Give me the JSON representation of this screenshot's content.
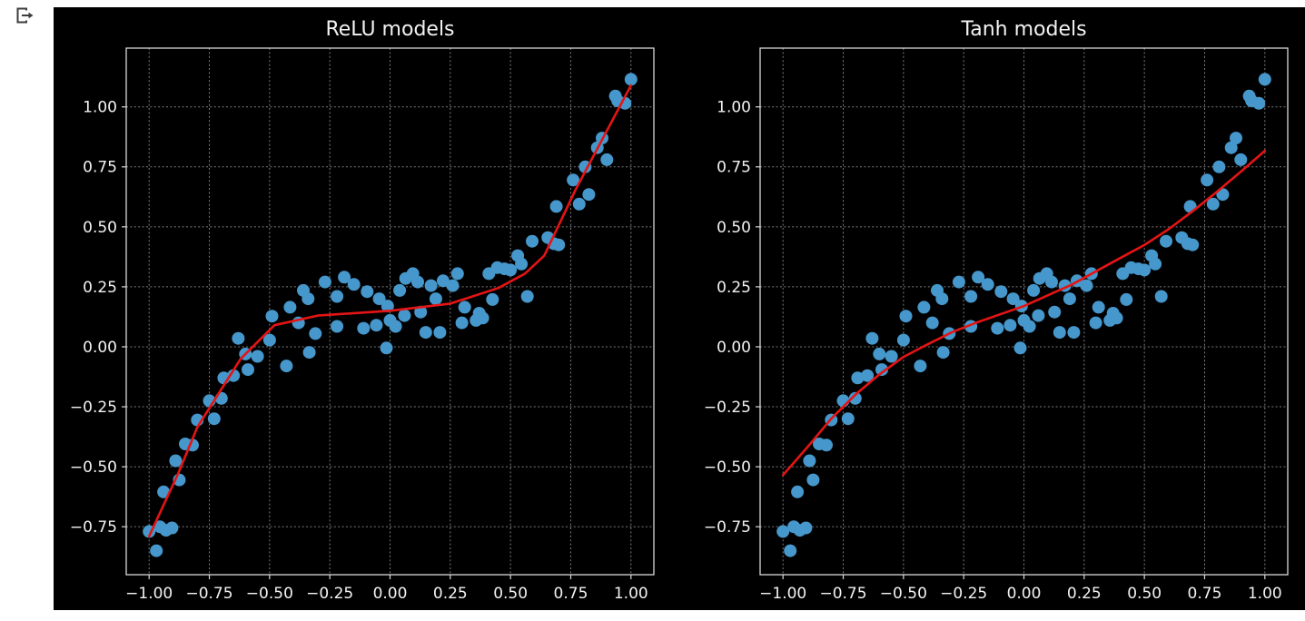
{
  "page": {
    "background": "#ffffff"
  },
  "icons": {
    "output_indicator": "cell-output-icon"
  },
  "figure": {
    "background": "#000000",
    "text_color": "#f2f2f2",
    "grid_color": "#9c9c9c",
    "spine_color": "#d9d9d9",
    "scatter_color": "#4697cb",
    "curve_color": "#e51414"
  },
  "chart_data": [
    {
      "type": "scatter",
      "title": "ReLU models",
      "xlabel": "",
      "ylabel": "",
      "grid": true,
      "legend": null,
      "xlim": [
        -1.095,
        1.095
      ],
      "ylim": [
        -0.95,
        1.245
      ],
      "x_ticks": {
        "values": [
          -1.0,
          -0.75,
          -0.5,
          -0.25,
          0.0,
          0.25,
          0.5,
          0.75,
          1.0
        ],
        "labels": [
          "−1.00",
          "−0.75",
          "−0.50",
          "−0.25",
          "0.00",
          "0.25",
          "0.50",
          "0.75",
          "1.00"
        ]
      },
      "y_ticks": {
        "values": [
          1.0,
          0.75,
          0.5,
          0.25,
          0.0,
          -0.25,
          -0.5,
          -0.75
        ],
        "labels": [
          "1.00",
          "0.75",
          "0.50",
          "0.25",
          "0.00",
          "−0.25",
          "−0.50",
          "−0.75"
        ]
      },
      "scatter": [
        [
          -1.0,
          -0.77
        ],
        [
          -0.97,
          -0.85
        ],
        [
          -0.955,
          -0.75
        ],
        [
          -0.93,
          -0.765
        ],
        [
          -0.905,
          -0.755
        ],
        [
          -0.94,
          -0.605
        ],
        [
          -0.89,
          -0.475
        ],
        [
          -0.875,
          -0.555
        ],
        [
          -0.85,
          -0.405
        ],
        [
          -0.82,
          -0.41
        ],
        [
          -0.8,
          -0.305
        ],
        [
          -0.75,
          -0.225
        ],
        [
          -0.73,
          -0.3
        ],
        [
          -0.7,
          -0.215
        ],
        [
          -0.69,
          -0.13
        ],
        [
          -0.65,
          -0.12
        ],
        [
          -0.63,
          0.035
        ],
        [
          -0.6,
          -0.03
        ],
        [
          -0.59,
          -0.095
        ],
        [
          -0.55,
          -0.04
        ],
        [
          -0.5,
          0.028
        ],
        [
          -0.49,
          0.128
        ],
        [
          -0.43,
          -0.08
        ],
        [
          -0.415,
          0.165
        ],
        [
          -0.38,
          0.1
        ],
        [
          -0.36,
          0.235
        ],
        [
          -0.34,
          0.2
        ],
        [
          -0.335,
          -0.023
        ],
        [
          -0.31,
          0.055
        ],
        [
          -0.27,
          0.27
        ],
        [
          -0.22,
          0.085
        ],
        [
          -0.22,
          0.21
        ],
        [
          -0.19,
          0.29
        ],
        [
          -0.15,
          0.26
        ],
        [
          -0.11,
          0.077
        ],
        [
          -0.095,
          0.23
        ],
        [
          -0.057,
          0.09
        ],
        [
          -0.045,
          0.2
        ],
        [
          -0.015,
          -0.005
        ],
        [
          -0.01,
          0.17
        ],
        [
          0.0,
          0.11
        ],
        [
          0.023,
          0.085
        ],
        [
          0.04,
          0.235
        ],
        [
          0.06,
          0.13
        ],
        [
          0.065,
          0.285
        ],
        [
          0.095,
          0.305
        ],
        [
          0.115,
          0.27
        ],
        [
          0.127,
          0.145
        ],
        [
          0.148,
          0.06
        ],
        [
          0.17,
          0.255
        ],
        [
          0.19,
          0.2
        ],
        [
          0.207,
          0.06
        ],
        [
          0.22,
          0.275
        ],
        [
          0.26,
          0.255
        ],
        [
          0.28,
          0.305
        ],
        [
          0.298,
          0.1
        ],
        [
          0.31,
          0.165
        ],
        [
          0.357,
          0.11
        ],
        [
          0.37,
          0.14
        ],
        [
          0.385,
          0.12
        ],
        [
          0.41,
          0.305
        ],
        [
          0.425,
          0.197
        ],
        [
          0.445,
          0.33
        ],
        [
          0.475,
          0.325
        ],
        [
          0.5,
          0.32
        ],
        [
          0.53,
          0.38
        ],
        [
          0.545,
          0.345
        ],
        [
          0.57,
          0.21
        ],
        [
          0.59,
          0.44
        ],
        [
          0.655,
          0.455
        ],
        [
          0.68,
          0.43
        ],
        [
          0.69,
          0.585
        ],
        [
          0.7,
          0.425
        ],
        [
          0.76,
          0.695
        ],
        [
          0.785,
          0.595
        ],
        [
          0.81,
          0.75
        ],
        [
          0.825,
          0.635
        ],
        [
          0.86,
          0.83
        ],
        [
          0.88,
          0.87
        ],
        [
          0.9,
          0.78
        ],
        [
          0.935,
          1.045
        ],
        [
          0.945,
          1.025
        ],
        [
          0.975,
          1.015
        ],
        [
          1.0,
          1.115
        ]
      ],
      "curve": [
        [
          -1.0,
          -0.79
        ],
        [
          -0.88,
          -0.53
        ],
        [
          -0.8,
          -0.335
        ],
        [
          -0.62,
          -0.05
        ],
        [
          -0.48,
          0.09
        ],
        [
          -0.3,
          0.13
        ],
        [
          0.0,
          0.15
        ],
        [
          0.25,
          0.18
        ],
        [
          0.45,
          0.245
        ],
        [
          0.56,
          0.305
        ],
        [
          0.64,
          0.38
        ],
        [
          0.77,
          0.655
        ],
        [
          1.0,
          1.09
        ]
      ]
    },
    {
      "type": "scatter",
      "title": "Tanh models",
      "xlabel": "",
      "ylabel": "",
      "grid": true,
      "legend": null,
      "xlim": [
        -1.095,
        1.095
      ],
      "ylim": [
        -0.95,
        1.245
      ],
      "x_ticks": {
        "values": [
          -1.0,
          -0.75,
          -0.5,
          -0.25,
          0.0,
          0.25,
          0.5,
          0.75,
          1.0
        ],
        "labels": [
          "−1.00",
          "−0.75",
          "−0.50",
          "−0.25",
          "0.00",
          "0.25",
          "0.50",
          "0.75",
          "1.00"
        ]
      },
      "y_ticks": {
        "values": [
          1.0,
          0.75,
          0.5,
          0.25,
          0.0,
          -0.25,
          -0.5,
          -0.75
        ],
        "labels": [
          "1.00",
          "0.75",
          "0.50",
          "0.25",
          "0.00",
          "−0.25",
          "−0.50",
          "−0.75"
        ]
      },
      "scatter": [
        [
          -1.0,
          -0.77
        ],
        [
          -0.97,
          -0.85
        ],
        [
          -0.955,
          -0.75
        ],
        [
          -0.93,
          -0.765
        ],
        [
          -0.905,
          -0.755
        ],
        [
          -0.94,
          -0.605
        ],
        [
          -0.89,
          -0.475
        ],
        [
          -0.875,
          -0.555
        ],
        [
          -0.85,
          -0.405
        ],
        [
          -0.82,
          -0.41
        ],
        [
          -0.8,
          -0.305
        ],
        [
          -0.75,
          -0.225
        ],
        [
          -0.73,
          -0.3
        ],
        [
          -0.7,
          -0.215
        ],
        [
          -0.69,
          -0.13
        ],
        [
          -0.65,
          -0.12
        ],
        [
          -0.63,
          0.035
        ],
        [
          -0.6,
          -0.03
        ],
        [
          -0.59,
          -0.095
        ],
        [
          -0.55,
          -0.04
        ],
        [
          -0.5,
          0.028
        ],
        [
          -0.49,
          0.128
        ],
        [
          -0.43,
          -0.08
        ],
        [
          -0.415,
          0.165
        ],
        [
          -0.38,
          0.1
        ],
        [
          -0.36,
          0.235
        ],
        [
          -0.34,
          0.2
        ],
        [
          -0.335,
          -0.023
        ],
        [
          -0.31,
          0.055
        ],
        [
          -0.27,
          0.27
        ],
        [
          -0.22,
          0.085
        ],
        [
          -0.22,
          0.21
        ],
        [
          -0.19,
          0.29
        ],
        [
          -0.15,
          0.26
        ],
        [
          -0.11,
          0.077
        ],
        [
          -0.095,
          0.23
        ],
        [
          -0.057,
          0.09
        ],
        [
          -0.045,
          0.2
        ],
        [
          -0.015,
          -0.005
        ],
        [
          -0.01,
          0.17
        ],
        [
          0.0,
          0.11
        ],
        [
          0.023,
          0.085
        ],
        [
          0.04,
          0.235
        ],
        [
          0.06,
          0.13
        ],
        [
          0.065,
          0.285
        ],
        [
          0.095,
          0.305
        ],
        [
          0.115,
          0.27
        ],
        [
          0.127,
          0.145
        ],
        [
          0.148,
          0.06
        ],
        [
          0.17,
          0.255
        ],
        [
          0.19,
          0.2
        ],
        [
          0.207,
          0.06
        ],
        [
          0.22,
          0.275
        ],
        [
          0.26,
          0.255
        ],
        [
          0.28,
          0.305
        ],
        [
          0.298,
          0.1
        ],
        [
          0.31,
          0.165
        ],
        [
          0.357,
          0.11
        ],
        [
          0.37,
          0.14
        ],
        [
          0.385,
          0.12
        ],
        [
          0.41,
          0.305
        ],
        [
          0.425,
          0.197
        ],
        [
          0.445,
          0.33
        ],
        [
          0.475,
          0.325
        ],
        [
          0.5,
          0.32
        ],
        [
          0.53,
          0.38
        ],
        [
          0.545,
          0.345
        ],
        [
          0.57,
          0.21
        ],
        [
          0.59,
          0.44
        ],
        [
          0.655,
          0.455
        ],
        [
          0.68,
          0.43
        ],
        [
          0.69,
          0.585
        ],
        [
          0.7,
          0.425
        ],
        [
          0.76,
          0.695
        ],
        [
          0.785,
          0.595
        ],
        [
          0.81,
          0.75
        ],
        [
          0.825,
          0.635
        ],
        [
          0.86,
          0.83
        ],
        [
          0.88,
          0.87
        ],
        [
          0.9,
          0.78
        ],
        [
          0.935,
          1.045
        ],
        [
          0.945,
          1.025
        ],
        [
          0.975,
          1.015
        ],
        [
          1.0,
          1.115
        ]
      ],
      "curve": [
        [
          -1.0,
          -0.535
        ],
        [
          -0.9,
          -0.42
        ],
        [
          -0.8,
          -0.3
        ],
        [
          -0.7,
          -0.2
        ],
        [
          -0.6,
          -0.115
        ],
        [
          -0.5,
          -0.042
        ],
        [
          -0.4,
          0.01
        ],
        [
          -0.3,
          0.06
        ],
        [
          -0.2,
          0.1
        ],
        [
          -0.1,
          0.135
        ],
        [
          0.0,
          0.17
        ],
        [
          0.1,
          0.215
        ],
        [
          0.2,
          0.26
        ],
        [
          0.3,
          0.315
        ],
        [
          0.4,
          0.37
        ],
        [
          0.5,
          0.424
        ],
        [
          0.6,
          0.49
        ],
        [
          0.7,
          0.565
        ],
        [
          0.8,
          0.645
        ],
        [
          0.9,
          0.73
        ],
        [
          1.0,
          0.817
        ]
      ]
    }
  ]
}
